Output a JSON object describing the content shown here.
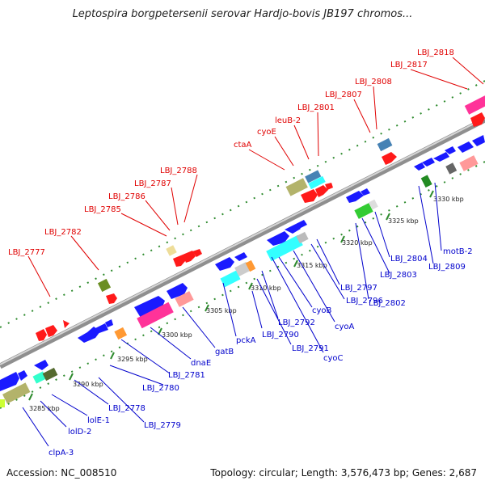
{
  "title": "Leptospira borgpetersenii serovar Hardjo-bovis JB197 chromos...",
  "footer": {
    "accession": "Accession: NC_008510",
    "info": "Topology: circular; Length: 3,576,473 bp; Genes: 2,687"
  },
  "scale": {
    "ticks": [
      {
        "label": "3285 kbp",
        "kbp": 3285
      },
      {
        "label": "3290 kbp",
        "kbp": 3290
      },
      {
        "label": "3295 kbp",
        "kbp": 3295
      },
      {
        "label": "3300 kbp",
        "kbp": 3300
      },
      {
        "label": "3305 kbp",
        "kbp": 3305
      },
      {
        "label": "3310 kbp",
        "kbp": 3310
      },
      {
        "label": "3315 kbp",
        "kbp": 3315
      },
      {
        "label": "3320 kbp",
        "kbp": 3320
      },
      {
        "label": "3325 kbp",
        "kbp": 3325
      },
      {
        "label": "3330 kbp",
        "kbp": 3330
      }
    ]
  },
  "colors": {
    "forward_label": "#e00000",
    "reverse_label": "#0000cc",
    "backbone": "#9a9a9a",
    "tick": "#2e8b2e",
    "forward_arrow": "#ff1a1a",
    "reverse_arrow": "#1a1aff",
    "cog_magenta": "#ff3399",
    "cog_cyan": "#33ffff",
    "cog_olive": "#b3b36b",
    "cog_green": "#33cc33",
    "cog_orange": "#ff9933",
    "cog_pink": "#ff9999",
    "cog_steel": "#4682b4"
  },
  "forward_labels": [
    {
      "id": "f-2777",
      "text": "LBJ_2777"
    },
    {
      "id": "f-2782",
      "text": "LBJ_2782"
    },
    {
      "id": "f-2785",
      "text": "LBJ_2785"
    },
    {
      "id": "f-2786",
      "text": "LBJ_2786"
    },
    {
      "id": "f-2787",
      "text": "LBJ_2787"
    },
    {
      "id": "f-2788",
      "text": "LBJ_2788"
    },
    {
      "id": "f-ctaA",
      "text": "ctaA"
    },
    {
      "id": "f-cyoE",
      "text": "cyoE"
    },
    {
      "id": "f-leuB",
      "text": "leuB-2"
    },
    {
      "id": "f-2801",
      "text": "LBJ_2801"
    },
    {
      "id": "f-2807",
      "text": "LBJ_2807"
    },
    {
      "id": "f-2808",
      "text": "LBJ_2808"
    },
    {
      "id": "f-2817",
      "text": "LBJ_2817"
    },
    {
      "id": "f-2818",
      "text": "LBJ_2818"
    }
  ],
  "reverse_labels": [
    {
      "id": "r-clpA",
      "text": "clpA-3"
    },
    {
      "id": "r-lolD",
      "text": "lolD-2"
    },
    {
      "id": "r-lolE",
      "text": "lolE-1"
    },
    {
      "id": "r-2778",
      "text": "LBJ_2778"
    },
    {
      "id": "r-2779",
      "text": "LBJ_2779"
    },
    {
      "id": "r-2780",
      "text": "LBJ_2780"
    },
    {
      "id": "r-2781",
      "text": "LBJ_2781"
    },
    {
      "id": "r-dnaE",
      "text": "dnaE"
    },
    {
      "id": "r-gatB",
      "text": "gatB"
    },
    {
      "id": "r-pckA",
      "text": "pckA"
    },
    {
      "id": "r-2790",
      "text": "LBJ_2790"
    },
    {
      "id": "r-2791",
      "text": "LBJ_2791"
    },
    {
      "id": "r-2792",
      "text": "LBJ_2792"
    },
    {
      "id": "r-cyoB",
      "text": "cyoB"
    },
    {
      "id": "r-cyoA",
      "text": "cyoA"
    },
    {
      "id": "r-cyoC",
      "text": "cyoC"
    },
    {
      "id": "r-2796",
      "text": "LBJ_2796"
    },
    {
      "id": "r-2797",
      "text": "LBJ_2797"
    },
    {
      "id": "r-2802",
      "text": "LBJ_2802"
    },
    {
      "id": "r-2803",
      "text": "LBJ_2803"
    },
    {
      "id": "r-2804",
      "text": "LBJ_2804"
    },
    {
      "id": "r-2809",
      "text": "LBJ_2809"
    },
    {
      "id": "r-motB",
      "text": "motB-2"
    }
  ]
}
